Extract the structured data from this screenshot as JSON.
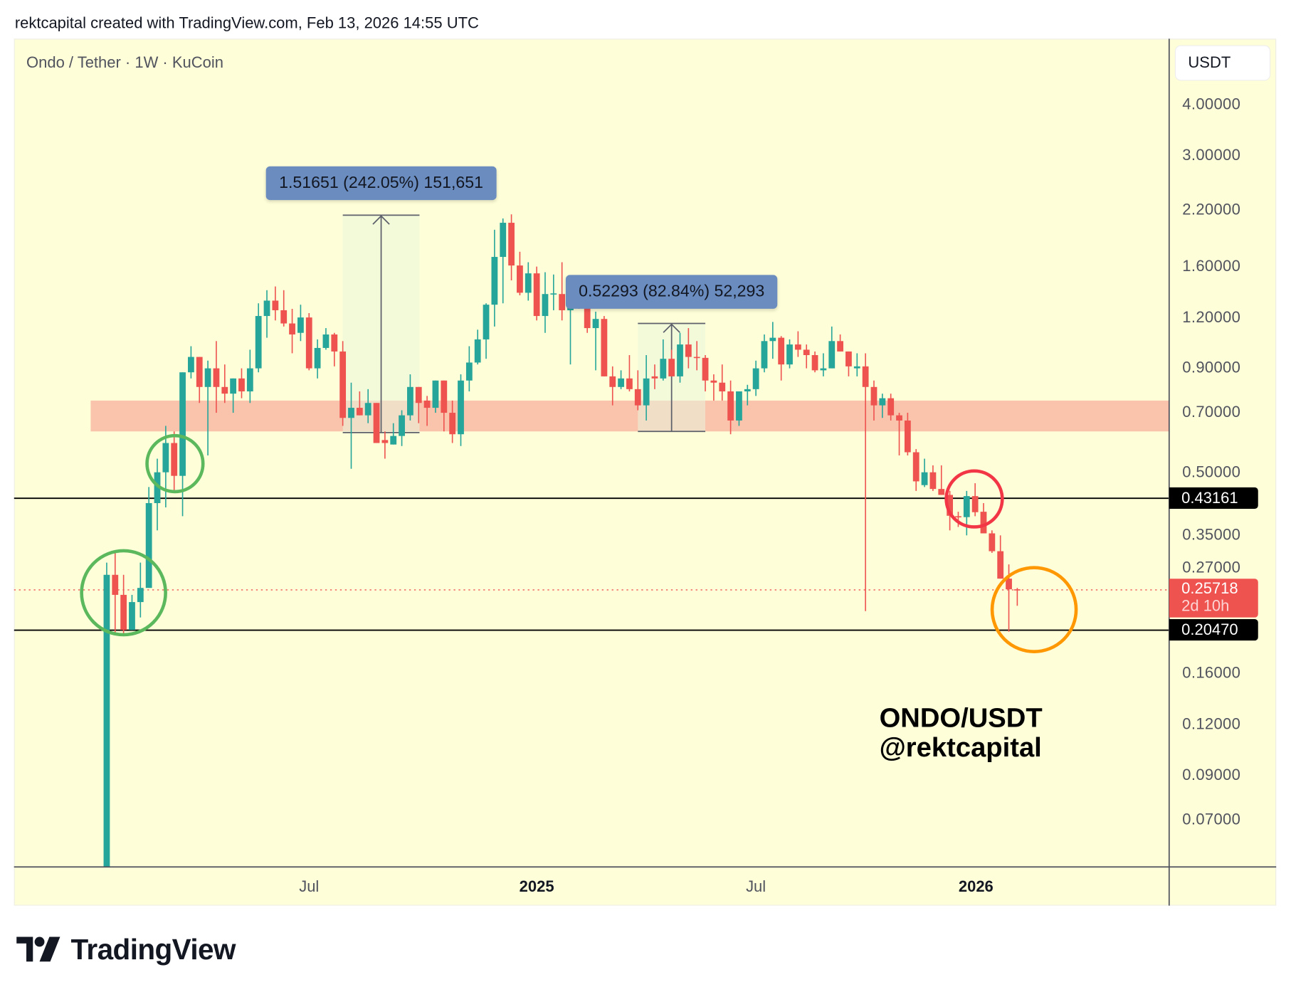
{
  "header": {
    "attribution": "rektcapital created with TradingView.com, Feb 13, 2026 14:55 UTC"
  },
  "legend": {
    "symbol": "Ondo / Tether · 1W · KuCoin"
  },
  "currency_button": "USDT",
  "watermark": {
    "line1": "ONDO/USDT",
    "line2": "@rektcapital"
  },
  "branding": {
    "logo_text": "TradingView"
  },
  "colors": {
    "up": "#26a69a",
    "down": "#ef5350",
    "background": "#fefed8",
    "zone": "#f9bca6",
    "label": "#6a8cbf"
  },
  "chart_data": {
    "type": "candlestick",
    "title": "Ondo / Tether · 1W · KuCoin",
    "scale": "log",
    "x_unit": "weeks since first candle (week of Jan 15, 2024)",
    "ylim": [
      0.055,
      4.6
    ],
    "price_ticks": [
      "4.00000",
      "3.00000",
      "2.20000",
      "1.60000",
      "1.20000",
      "0.90000",
      "0.70000",
      "0.50000",
      "0.35000",
      "0.27000",
      "0.16000",
      "0.12000",
      "0.09000",
      "0.07000"
    ],
    "time_ticks": [
      {
        "label": "Jul",
        "week": 24.0,
        "bold": false
      },
      {
        "label": "2025",
        "week": 51.0,
        "bold": true
      },
      {
        "label": "Jul",
        "week": 77.0,
        "bold": false
      },
      {
        "label": "2026",
        "week": 103.1,
        "bold": true
      }
    ],
    "ohlc_fields": [
      "open",
      "high",
      "low",
      "close"
    ],
    "candles": [
      [
        0.05,
        0.3,
        0.05,
        0.28
      ],
      [
        0.28,
        0.32,
        0.2,
        0.25
      ],
      [
        0.25,
        0.28,
        0.2,
        0.205
      ],
      [
        0.205,
        0.25,
        0.205,
        0.24
      ],
      [
        0.24,
        0.3,
        0.22,
        0.26
      ],
      [
        0.26,
        0.46,
        0.26,
        0.42
      ],
      [
        0.42,
        0.54,
        0.36,
        0.5
      ],
      [
        0.5,
        0.65,
        0.41,
        0.59
      ],
      [
        0.59,
        0.63,
        0.45,
        0.49
      ],
      [
        0.49,
        0.88,
        0.39,
        0.88
      ],
      [
        0.88,
        1.02,
        0.85,
        0.96
      ],
      [
        0.96,
        0.96,
        0.74,
        0.81
      ],
      [
        0.81,
        0.94,
        0.55,
        0.9
      ],
      [
        0.9,
        1.05,
        0.7,
        0.81
      ],
      [
        0.81,
        0.92,
        0.74,
        0.78
      ],
      [
        0.78,
        0.85,
        0.7,
        0.85
      ],
      [
        0.85,
        0.9,
        0.76,
        0.79
      ],
      [
        0.79,
        1.0,
        0.74,
        0.9
      ],
      [
        0.9,
        1.3,
        0.88,
        1.21
      ],
      [
        1.21,
        1.4,
        1.07,
        1.32
      ],
      [
        1.32,
        1.43,
        1.18,
        1.25
      ],
      [
        1.25,
        1.4,
        1.14,
        1.16
      ],
      [
        1.16,
        1.26,
        0.98,
        1.09
      ],
      [
        1.1,
        1.29,
        1.05,
        1.2
      ],
      [
        1.2,
        1.23,
        0.89,
        0.9
      ],
      [
        0.9,
        1.06,
        0.85,
        1.01
      ],
      [
        1.01,
        1.13,
        1.0,
        1.09
      ],
      [
        1.09,
        1.1,
        0.91,
        0.99
      ],
      [
        0.99,
        1.05,
        0.65,
        0.68
      ],
      [
        0.68,
        0.83,
        0.51,
        0.72
      ],
      [
        0.72,
        0.79,
        0.69,
        0.69
      ],
      [
        0.69,
        0.8,
        0.66,
        0.74
      ],
      [
        0.74,
        0.74,
        0.59,
        0.59
      ],
      [
        0.6,
        0.63,
        0.54,
        0.59
      ],
      [
        0.585,
        0.66,
        0.585,
        0.614
      ],
      [
        0.614,
        0.71,
        0.58,
        0.69
      ],
      [
        0.69,
        0.87,
        0.67,
        0.81
      ],
      [
        0.81,
        0.81,
        0.66,
        0.74
      ],
      [
        0.75,
        0.77,
        0.65,
        0.72
      ],
      [
        0.72,
        0.84,
        0.7,
        0.84
      ],
      [
        0.84,
        0.84,
        0.63,
        0.7
      ],
      [
        0.7,
        0.75,
        0.59,
        0.62
      ],
      [
        0.62,
        0.87,
        0.58,
        0.84
      ],
      [
        0.84,
        1.02,
        0.79,
        0.93
      ],
      [
        0.93,
        1.12,
        0.92,
        1.06
      ],
      [
        1.06,
        1.3,
        0.95,
        1.29
      ],
      [
        1.29,
        1.97,
        1.14,
        1.69
      ],
      [
        1.69,
        2.1,
        1.3,
        2.05
      ],
      [
        2.05,
        2.15,
        1.48,
        1.61
      ],
      [
        1.61,
        1.74,
        1.36,
        1.38
      ],
      [
        1.38,
        1.64,
        1.32,
        1.54
      ],
      [
        1.54,
        1.6,
        1.18,
        1.21
      ],
      [
        1.21,
        1.55,
        1.1,
        1.37
      ],
      [
        1.37,
        1.53,
        1.25,
        1.375
      ],
      [
        1.37,
        1.64,
        1.18,
        1.25
      ],
      [
        1.25,
        1.51,
        0.92,
        1.33
      ],
      [
        1.33,
        1.44,
        1.26,
        1.28
      ],
      [
        1.28,
        1.3,
        1.1,
        1.13
      ],
      [
        1.13,
        1.24,
        0.89,
        1.19
      ],
      [
        1.19,
        1.21,
        0.86,
        0.86
      ],
      [
        0.86,
        0.91,
        0.73,
        0.81
      ],
      [
        0.81,
        0.89,
        0.8,
        0.85
      ],
      [
        0.85,
        0.97,
        0.79,
        0.8
      ],
      [
        0.8,
        0.89,
        0.71,
        0.73
      ],
      [
        0.73,
        0.97,
        0.67,
        0.85
      ],
      [
        0.86,
        0.92,
        0.8,
        0.85
      ],
      [
        0.85,
        1.06,
        0.84,
        0.95
      ],
      [
        0.95,
        1.0,
        0.86,
        0.86
      ],
      [
        0.86,
        1.1,
        0.83,
        1.03
      ],
      [
        1.03,
        1.13,
        0.9,
        0.96
      ],
      [
        0.96,
        1.05,
        0.89,
        0.955
      ],
      [
        0.955,
        0.97,
        0.79,
        0.84
      ],
      [
        0.84,
        0.87,
        0.75,
        0.83
      ],
      [
        0.83,
        0.92,
        0.75,
        0.79
      ],
      [
        0.79,
        0.84,
        0.62,
        0.67
      ],
      [
        0.67,
        0.79,
        0.65,
        0.79
      ],
      [
        0.79,
        0.82,
        0.73,
        0.8
      ],
      [
        0.8,
        0.94,
        0.77,
        0.9
      ],
      [
        0.9,
        1.09,
        0.88,
        1.05
      ],
      [
        1.05,
        1.17,
        0.95,
        1.07
      ],
      [
        1.07,
        1.08,
        0.84,
        0.92
      ],
      [
        0.92,
        1.06,
        0.9,
        1.03
      ],
      [
        1.03,
        1.11,
        0.96,
        1.0
      ],
      [
        1.0,
        1.03,
        0.9,
        0.97
      ],
      [
        0.97,
        0.99,
        0.88,
        0.89
      ],
      [
        0.89,
        0.98,
        0.86,
        0.9
      ],
      [
        0.9,
        1.14,
        0.9,
        1.05
      ],
      [
        1.05,
        1.09,
        0.99,
        0.99
      ],
      [
        0.99,
        0.99,
        0.86,
        0.91
      ],
      [
        0.9,
        0.98,
        0.86,
        0.91
      ],
      [
        0.91,
        0.98,
        0.228,
        0.81
      ],
      [
        0.81,
        0.84,
        0.67,
        0.73
      ],
      [
        0.73,
        0.78,
        0.68,
        0.76
      ],
      [
        0.76,
        0.78,
        0.67,
        0.69
      ],
      [
        0.69,
        0.7,
        0.55,
        0.67
      ],
      [
        0.67,
        0.7,
        0.55,
        0.56
      ],
      [
        0.56,
        0.57,
        0.45,
        0.475
      ],
      [
        0.465,
        0.54,
        0.46,
        0.5
      ],
      [
        0.5,
        0.52,
        0.45,
        0.455
      ],
      [
        0.455,
        0.52,
        0.44,
        0.44
      ],
      [
        0.44,
        0.45,
        0.36,
        0.391
      ],
      [
        0.39,
        0.4,
        0.367,
        0.388
      ],
      [
        0.388,
        0.45,
        0.35,
        0.437
      ],
      [
        0.437,
        0.47,
        0.39,
        0.399
      ],
      [
        0.4,
        0.42,
        0.354,
        0.354
      ],
      [
        0.354,
        0.36,
        0.317,
        0.32
      ],
      [
        0.32,
        0.35,
        0.274,
        0.274
      ],
      [
        0.274,
        0.297,
        0.203,
        0.258
      ],
      [
        0.258,
        0.26,
        0.235,
        0.25718
      ]
    ],
    "horizontal_levels": [
      {
        "price": 0.43161,
        "label": "0.43161"
      },
      {
        "price": 0.2047,
        "label": "0.20470"
      }
    ],
    "last_price": {
      "price": 0.25718,
      "label": "0.25718",
      "countdown": "2d 10h"
    },
    "zone": {
      "price_low": 0.63,
      "price_high": 0.75,
      "week_start": -1.9,
      "week_end": 126
    },
    "measurements": [
      {
        "label": "1.51651 (242.05%) 151,651",
        "week_start": 28.0,
        "week_end": 37.1,
        "price_low": 0.626,
        "price_high": 2.14
      },
      {
        "label": "0.52293 (82.84%) 52,293",
        "week_start": 63.0,
        "week_end": 71.0,
        "price_low": 0.63,
        "price_high": 1.16
      }
    ],
    "circles": [
      {
        "color": "#5cb85c",
        "week": 2.0,
        "price": 0.253,
        "size": "large"
      },
      {
        "color": "#5cb85c",
        "week": 8.1,
        "price": 0.525,
        "size": "small"
      },
      {
        "color": "#f23645",
        "week": 102.9,
        "price": 0.43,
        "size": "small"
      },
      {
        "color": "#ff9800",
        "week": 110.0,
        "price": 0.23,
        "size": "large"
      }
    ]
  }
}
